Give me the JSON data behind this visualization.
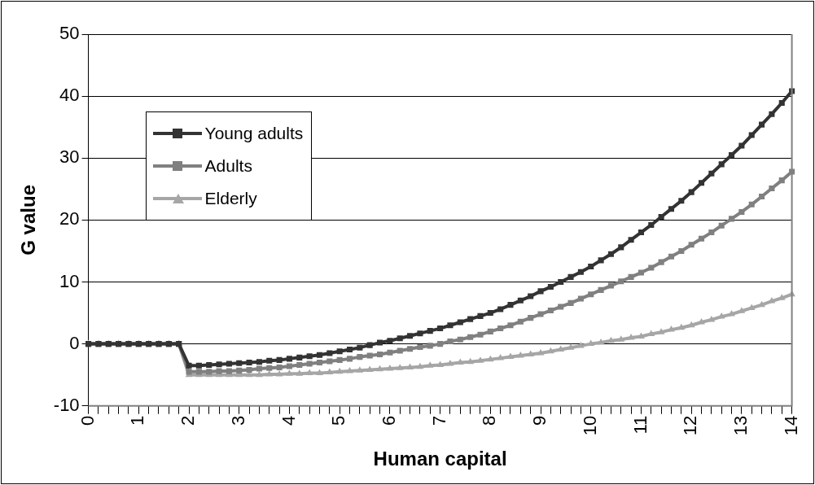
{
  "chart_data": {
    "type": "line",
    "xlabel": "Human capital",
    "ylabel": "G value",
    "categories": [
      "0",
      null,
      null,
      null,
      null,
      "1",
      null,
      null,
      null,
      null,
      "2",
      null,
      null,
      null,
      null,
      "3",
      null,
      null,
      null,
      null,
      "4",
      null,
      null,
      null,
      null,
      "5",
      null,
      null,
      null,
      null,
      "6",
      null,
      null,
      null,
      null,
      "7",
      null,
      null,
      null,
      null,
      "8",
      null,
      null,
      null,
      null,
      "9",
      null,
      null,
      null,
      null,
      "10",
      null,
      null,
      null,
      null,
      "11",
      null,
      null,
      null,
      null,
      "12",
      null,
      null,
      null,
      null,
      "13",
      null,
      null,
      null,
      null,
      "14"
    ],
    "series": [
      {
        "name": "Young adults",
        "color": "#333333",
        "marker": "square",
        "values": [
          0,
          0,
          0,
          0,
          0,
          0,
          0,
          0,
          0,
          0,
          -3.5,
          -3.5,
          -3.4,
          -3.3,
          -3.2,
          -3.1,
          -3.0,
          -2.9,
          -2.7,
          -2.6,
          -2.4,
          -2.2,
          -2.0,
          -1.8,
          -1.5,
          -1.2,
          -0.9,
          -0.6,
          -0.2,
          0.2,
          0.5,
          0.9,
          1.3,
          1.7,
          2.1,
          2.5,
          3.0,
          3.5,
          4.0,
          4.5,
          5,
          5.6,
          6.3,
          7.0,
          7.7,
          8.5,
          9.2,
          10.0,
          10.8,
          11.6,
          12.5,
          13.5,
          14.5,
          15.6,
          16.8,
          18,
          19.2,
          20.5,
          21.8,
          23.1,
          24.5,
          26,
          27.5,
          29,
          30.5,
          32,
          33.7,
          35.4,
          37.1,
          38.9,
          40.8
        ]
      },
      {
        "name": "Adults",
        "color": "#808080",
        "marker": "square",
        "values": [
          0,
          0,
          0,
          0,
          0,
          0,
          0,
          0,
          0,
          0,
          -4.5,
          -4.5,
          -4.5,
          -4.4,
          -4.4,
          -4.3,
          -4.2,
          -4.0,
          -3.9,
          -3.8,
          -3.6,
          -3.4,
          -3.2,
          -3.0,
          -2.8,
          -2.6,
          -2.4,
          -2.1,
          -1.9,
          -1.7,
          -1.4,
          -1.1,
          -0.8,
          -0.5,
          -0.3,
          0,
          0.4,
          0.7,
          1.1,
          1.5,
          2,
          2.5,
          3.0,
          3.6,
          4.2,
          4.8,
          5.4,
          6.0,
          6.6,
          7.3,
          8,
          8.7,
          9.4,
          10.1,
          10.8,
          11.5,
          12.3,
          13.2,
          14.1,
          15.0,
          16,
          17,
          18,
          19.1,
          20.2,
          21.3,
          22.5,
          23.8,
          25.1,
          26.4,
          27.8
        ]
      },
      {
        "name": "Elderly",
        "color": "#a6a6a6",
        "marker": "triangle",
        "values": [
          0,
          0,
          0,
          0,
          0,
          0,
          0,
          0,
          0,
          0,
          -5,
          -5,
          -5,
          -5,
          -5,
          -5,
          -5.0,
          -5.0,
          -4.9,
          -4.9,
          -4.8,
          -4.8,
          -4.7,
          -4.7,
          -4.6,
          -4.5,
          -4.4,
          -4.3,
          -4.2,
          -4.1,
          -4.0,
          -3.9,
          -3.8,
          -3.7,
          -3.5,
          -3.4,
          -3.2,
          -3.0,
          -2.9,
          -2.7,
          -2.5,
          -2.3,
          -2.1,
          -1.9,
          -1.7,
          -1.5,
          -1.2,
          -0.9,
          -0.6,
          -0.3,
          0,
          0.2,
          0.5,
          0.7,
          1.0,
          1.2,
          1.6,
          1.9,
          2.3,
          2.6,
          3,
          3.5,
          3.9,
          4.4,
          4.8,
          5.3,
          5.8,
          6.3,
          6.9,
          7.4,
          8
        ]
      }
    ],
    "ylim": [
      -10,
      50
    ],
    "yticks": [
      -10,
      0,
      10,
      20,
      30,
      40,
      50
    ],
    "grid": "y",
    "legend": "top left"
  }
}
